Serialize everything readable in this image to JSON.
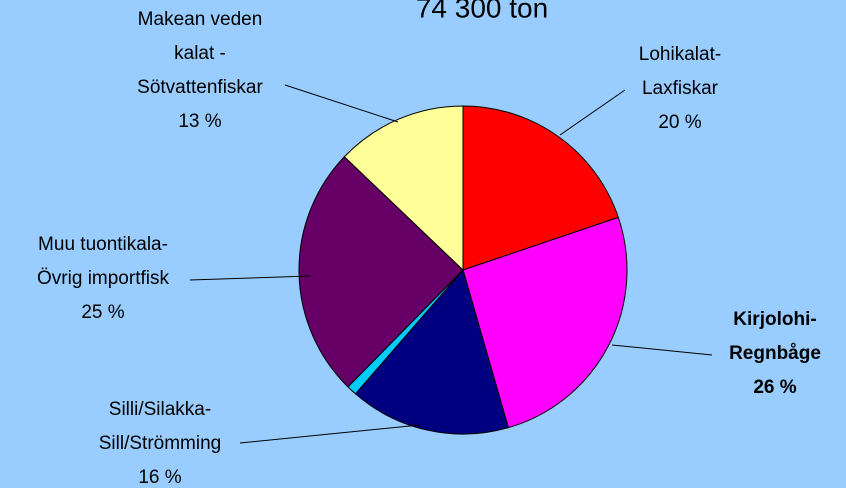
{
  "chart_data": {
    "type": "pie",
    "title": "74 300 ton",
    "categories": [
      [
        "Lohikalat-",
        "Laxfiskar"
      ],
      [
        "Kirjolohi-",
        "Regnbåge"
      ],
      [
        "Silli/Silakka-",
        "Sill/Strömming"
      ],
      null,
      [
        "Muu tuontikala-",
        "Övrig importfisk"
      ],
      [
        "Makean veden",
        "kalat -",
        "Sötvattenfiskar"
      ]
    ],
    "values": [
      20,
      26,
      16,
      1,
      25,
      13
    ],
    "value_labels": [
      "20 %",
      "26 %",
      "16 %",
      null,
      "25 %",
      "13 %"
    ],
    "colors": [
      "#ff0000",
      "#ff00ff",
      "#000080",
      "#00ccff",
      "#660066",
      "#ffff99"
    ],
    "bold": [
      false,
      true,
      false,
      false,
      false,
      false
    ]
  }
}
